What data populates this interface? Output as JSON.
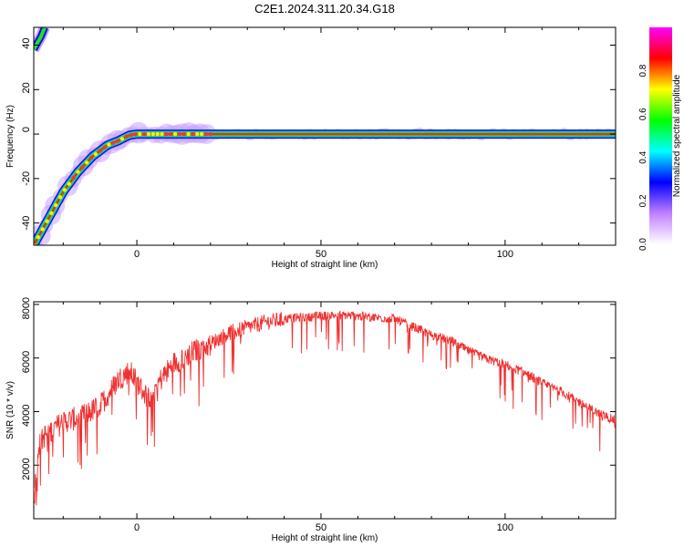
{
  "title": "C2E1.2024.311.20.34.G18",
  "chart_data": [
    {
      "type": "heatmap",
      "xlabel": "Height of straight line (km)",
      "ylabel": "Frequency (Hz)",
      "xlim": [
        -28,
        130
      ],
      "ylim": [
        -50,
        48
      ],
      "xticks": [
        0,
        50,
        100
      ],
      "yticks": [
        -40,
        -20,
        0,
        20,
        40
      ],
      "ridge": {
        "x": [
          -28,
          -24,
          -20,
          -16,
          -12,
          -8,
          -5,
          -2,
          0,
          5,
          10,
          15,
          20,
          50,
          100,
          130
        ],
        "y": [
          -50,
          -38,
          -26,
          -17,
          -10,
          -5,
          -3,
          -0.5,
          0,
          0,
          0,
          0,
          0,
          0,
          0,
          0
        ]
      },
      "branch": {
        "x": [
          -28,
          -26,
          -25
        ],
        "y": [
          38,
          44,
          48
        ]
      },
      "colorbar": {
        "label": "Normalized spectral amplitude",
        "range": [
          0,
          1
        ],
        "ticks": [
          "0.0",
          "0.2",
          "0.4",
          "0.6",
          "0.8"
        ],
        "colors": [
          "#ffffff",
          "#c080ff",
          "#0000ff",
          "#00ffff",
          "#00ff00",
          "#ffff00",
          "#ff0000",
          "#ff00ff"
        ]
      }
    },
    {
      "type": "line",
      "xlabel": "Height of straight line (km)",
      "ylabel": "SNR (10 * v/v)",
      "xlim": [
        -28,
        130
      ],
      "ylim": [
        0,
        8100
      ],
      "xticks": [
        0,
        50,
        100
      ],
      "yticks": [
        2000,
        4000,
        6000,
        8000
      ],
      "color": "#f03030",
      "series": [
        {
          "x": [
            -28,
            -25,
            -20,
            -15,
            -10,
            -5,
            -2,
            0,
            3,
            6,
            10,
            15,
            20,
            25,
            30,
            35,
            40,
            45,
            50,
            55,
            60,
            65,
            70,
            75,
            80,
            85,
            90,
            95,
            100,
            105,
            110,
            115,
            120,
            125,
            130
          ],
          "values": [
            2500,
            3200,
            3700,
            3900,
            4300,
            5300,
            5600,
            5200,
            4600,
            5200,
            5900,
            6300,
            6600,
            7000,
            7200,
            7400,
            7500,
            7550,
            7600,
            7650,
            7600,
            7550,
            7500,
            7200,
            6900,
            6700,
            6300,
            6000,
            5800,
            5500,
            5100,
            4800,
            4400,
            4000,
            3700
          ]
        }
      ]
    }
  ]
}
